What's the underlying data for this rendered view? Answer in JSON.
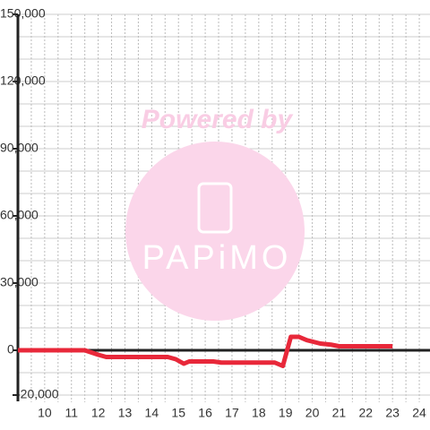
{
  "chart_data": {
    "type": "line",
    "watermark": [
      "Powered by",
      "PAPiMO"
    ],
    "x": [
      9,
      11.5,
      12,
      12.3,
      14.6,
      14.9,
      15.2,
      15.4,
      16.3,
      16.6,
      18.3,
      18.6,
      18.9,
      19.2,
      19.5,
      19.8,
      20.3,
      20.7,
      21,
      23
    ],
    "series": [
      {
        "name": "value",
        "color": "#e8283a",
        "values": [
          0,
          0,
          -2000,
          -3000,
          -3000,
          -4000,
          -6000,
          -5000,
          -5000,
          -5500,
          -5500,
          -5500,
          -7000,
          6000,
          6000,
          4500,
          3000,
          2500,
          1800,
          1800
        ]
      }
    ],
    "xlim": [
      9,
      24.4
    ],
    "xticks": [
      10,
      11,
      12,
      13,
      14,
      15,
      16,
      17,
      18,
      19,
      20,
      21,
      22,
      23,
      24
    ],
    "minor_xticks": [
      9.5,
      10.5,
      11.5,
      12.5,
      13.5,
      14.5,
      15.5,
      16.5,
      17.5,
      18.5,
      19.5,
      20.5,
      21.5,
      22.5,
      23.5
    ],
    "ylim": [
      -20000,
      150000
    ],
    "yticks": [
      {
        "value": -20000,
        "label": "-20,000"
      },
      0,
      {
        "value": 30000,
        "label": "30,000"
      },
      {
        "value": 60000,
        "label": "60,000"
      },
      {
        "value": 90000,
        "label": "90,000"
      },
      {
        "value": 120000,
        "label": "120,000"
      },
      {
        "value": 150000,
        "label": "150,000"
      }
    ],
    "minor_yticks": [
      -10000,
      10000,
      20000,
      40000,
      50000,
      70000,
      80000,
      100000,
      110000,
      130000,
      140000
    ],
    "grid": true
  }
}
